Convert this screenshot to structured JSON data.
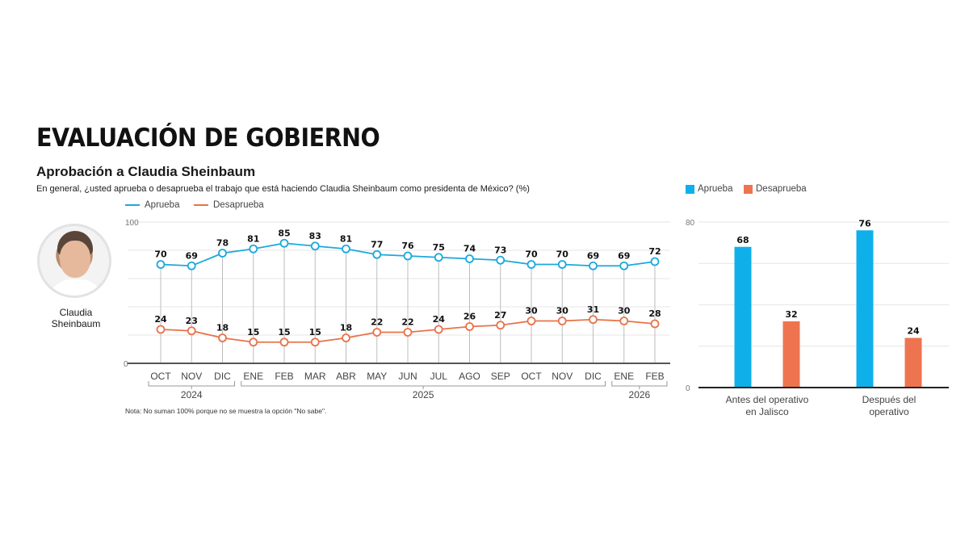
{
  "header": {
    "title": "EVALUACIÓN DE GOBIERNO",
    "subtitle": "Aprobación a Claudia Sheinbaum",
    "question": "En general, ¿usted aprueba o desaprueba el trabajo que está haciendo Claudia Sheinbaum como presidenta de México?  (%)"
  },
  "profile": {
    "name_line1": "Claudia",
    "name_line2": "Sheinbaum",
    "photo": "portrait-photo"
  },
  "note": "Nota: No suman 100% porque no se muestra la opción \"No sabe\".",
  "colors": {
    "aprueba": "#1ba9dd",
    "desaprueba": "#e8734a",
    "aprueba_bar": "#0fb0ea",
    "desaprueba_bar": "#ee744f"
  },
  "chart_data": [
    {
      "type": "line",
      "title": "Aprobación a Claudia Sheinbaum",
      "categories": [
        "OCT",
        "NOV",
        "DIC",
        "ENE",
        "FEB",
        "MAR",
        "ABR",
        "MAY",
        "JUN",
        "JUL",
        "AGO",
        "SEP",
        "OCT",
        "NOV",
        "DIC",
        "ENE",
        "FEB"
      ],
      "year_groups": [
        {
          "label": "2024",
          "start": 0,
          "end": 2
        },
        {
          "label": "2025",
          "start": 3,
          "end": 14
        },
        {
          "label": "2026",
          "start": 15,
          "end": 16
        }
      ],
      "series": [
        {
          "name": "Aprueba",
          "values": [
            70,
            69,
            78,
            81,
            85,
            83,
            81,
            77,
            76,
            75,
            74,
            73,
            70,
            70,
            69,
            69,
            72
          ]
        },
        {
          "name": "Desaprueba",
          "values": [
            24,
            23,
            18,
            15,
            15,
            15,
            18,
            22,
            22,
            24,
            26,
            27,
            30,
            30,
            31,
            30,
            28
          ]
        }
      ],
      "ylim": [
        0,
        100
      ],
      "yticks_labeled": [
        "0",
        "100"
      ],
      "grid_step": 20,
      "grid": true,
      "legend": "top-left",
      "xlabel": "",
      "ylabel": ""
    },
    {
      "type": "bar",
      "categories": [
        "Antes del operativo en Jalisco",
        "Después del operativo"
      ],
      "category_lines": [
        [
          "Antes del operativo",
          "en Jalisco"
        ],
        [
          "Después del",
          "operativo"
        ]
      ],
      "series": [
        {
          "name": "Aprueba",
          "values": [
            68,
            76
          ]
        },
        {
          "name": "Desaprueba",
          "values": [
            32,
            24
          ]
        }
      ],
      "ylim": [
        0,
        80
      ],
      "yticks_labeled": [
        "0",
        "80"
      ],
      "grid_step": 20,
      "grid": true,
      "legend": "top-left",
      "xlabel": "",
      "ylabel": ""
    }
  ]
}
